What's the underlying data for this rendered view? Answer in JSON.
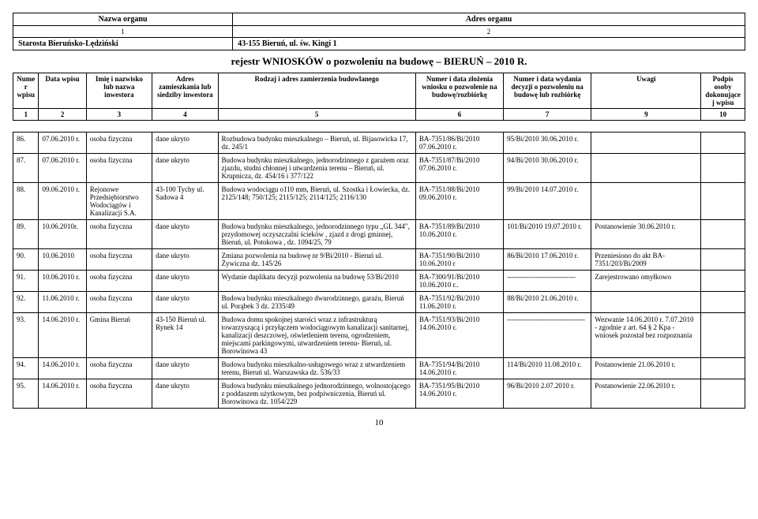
{
  "header": {
    "col1_label": "Nazwa organu",
    "col2_label": "Adres organu",
    "col1_num": "1",
    "col2_num": "2",
    "col1_val": "Starosta Bieruńsko-Lędziński",
    "col2_val": "43-155 Bieruń, ul. św. Kingi 1"
  },
  "register_title": "rejestr WNIOSKÓW o pozwoleniu na budowę – BIERUŃ – 2010 R.",
  "columns": {
    "c1": "Numer wpisu",
    "c2": "Data wpisu",
    "c3": "Imię i nazwisko lub nazwa inwestora",
    "c4": "Adres zamieszkania lub siedziby inwestora",
    "c5": "Rodzaj i adres zamierzenia budowlanego",
    "c6": "Numer i data złożenia wniosku o pozwolenie na budowę/rozbiórkę",
    "c7": "Numer i data wydania decyzji   o pozwoleniu na budowę lub rozbiórkę",
    "c9": "Uwagi",
    "c10": "Podpis osoby dokonującej wpisu"
  },
  "colnums": {
    "n1": "1",
    "n2": "2",
    "n3": "3",
    "n4": "4",
    "n5": "5",
    "n6": "6",
    "n7": "7",
    "n9": "9",
    "n10": "10"
  },
  "rows": [
    {
      "no": "86.",
      "date": "07.06.2010 r.",
      "inv": "osoba fizyczna",
      "addr": "dane ukryto",
      "desc": "Rozbudowa budynku mieszkalnego – Bieruń, ul. Bijasowicka 17, dz. 245/1",
      "app": "BA-7351/86/Bi/2010 07.06.2010 r.",
      "dec": "95/Bi/2010 30.06.2010 r.",
      "rem": "",
      "sig": ""
    },
    {
      "no": "87.",
      "date": "07.06.2010 r.",
      "inv": "osoba fizyczna",
      "addr": "dane ukryto",
      "desc": "Budowa budynku mieszkalnego, jednorodzinnego z garażem oraz zjazdu, studni chłonnej i utwardzenia terenu – Bieruń, ul. Krupnicza, dz. 454/16 i 377/122",
      "app": "BA-7351/87/Bi/2010 07.06.2010 r.",
      "dec": "94/Bi/2010 30.06.2010 r.",
      "rem": "",
      "sig": ""
    },
    {
      "no": "88.",
      "date": "09.06.2010 r.",
      "inv": "Rejonowe Przedsiębiorstwo Wodociągów i Kanalizacji S.A.",
      "addr": "43-100 Tychy ul. Sadowa 4",
      "desc": "Budowa wodociągu o110 mm, Bieruń, ul. Szostka i Łowiecka, dz. 2125/148; 750/125; 2115/125; 2114/125; 2116/130",
      "app": "BA-7351/88/Bi/2010 09.06.2010 r.",
      "dec": "99/Bi/2010 14.07.2010 r.",
      "rem": "",
      "sig": ""
    },
    {
      "no": "89.",
      "date": "10.06.2010r.",
      "inv": "osoba fizyczna",
      "addr": "dane ukryto",
      "desc": "Budowa budynku mieszkalnego, jednorodzinnego typu „GL 344\", przydomowej oczyszczalni ścieków , zjazd z drogi gminnej, Bieruń, ul. Potokowa , dz. 1094/25, 79",
      "app": "BA-7351/89/Bi/2010 10.06.2010 r.",
      "dec": "101/Bi/2010 19.07.2010 r.",
      "rem": "Postanowienie 30.06.2010 r.",
      "sig": ""
    },
    {
      "no": "90.",
      "date": "10.06.2010",
      "inv": "osoba fizyczna",
      "addr": "dane ukryto",
      "desc": "Zmiana pozwolenia na budowę  nr 9/Bi/2010 - Bieruń ul. Żywiczna dz. 145/26",
      "app": "BA-7351/90/Bi/2010 10.06.2010 r",
      "dec": "86/Bi/2010 17.06.2010 r.",
      "rem": "Przeniesiono do akt BA-7351/203/Bi/2009",
      "sig": ""
    },
    {
      "no": "91.",
      "date": "10.06.2010 r.",
      "inv": "osoba fizyczna",
      "addr": "dane ukryto",
      "desc": "Wydanie duplikatu decyzji pozwolenia na budowę 53/Bi/2010",
      "app": "BA-7300/91/Bi/2010 10.06.2010 r..",
      "dec": "-----------------------------",
      "rem": "Zarejestrowano omyłkowo",
      "sig": ""
    },
    {
      "no": "92.",
      "date": "11.06.2010 r.",
      "inv": "osoba fizyczna",
      "addr": "dane ukryto",
      "desc": "Budowa budynku mieszkalnego dwurodzinnego, garażu, Bieruń ul. Porąbek 3 dz. 2335/49",
      "app": "BA-7351/92/Bi/2010 11.06.2010 r.",
      "dec": "88/Bi/2010 21.06.2010 r.",
      "rem": "",
      "sig": ""
    },
    {
      "no": "93.",
      "date": "14.06.2010 r.",
      "inv": "Gmina Bieruń",
      "addr": "43-150 Bieruń ul. Rynek 14",
      "desc": "Budowa domu spokojnej starości wraz z infrastrukturą towarzyszącą i przyłączem wodociągowym kanalizacji sanitarnej, kanalizacji deszczowej, oświetleniem terenu, ogrodzeniem, miejscami parkingowymi, utwardzeniem terenu- Bieruń, ul. Borowinowa 43",
      "app": "BA-7351/93/Bi/2010 14.06.2010 r.",
      "dec": "---------------------------------",
      "rem": "Wezwanie 14.06.2010 r. 7.07.2010  -  zgodnie z art. 64 § 2 Kpa - wniosek pozostał bez rozpoznania",
      "sig": ""
    },
    {
      "no": "94.",
      "date": "14.06.2010 r.",
      "inv": "osoba fizyczna",
      "addr": "dane ukryto",
      "desc": "Budowa budynku mieszkalno-usługowego wraz z utwardzeniem terenu, Bieruń ul. Warszawska dz. 536/33",
      "app": "BA-7351/94/Bi/2010 14.06.2010 r.",
      "dec": "114/Bi/2010 11.08.2010 r.",
      "rem": "Postanowienie 21.06.2010 r.",
      "sig": ""
    },
    {
      "no": "95.",
      "date": "14.06.2010 r.",
      "inv": "osoba fizyczna",
      "addr": "dane ukryto",
      "desc": "Budowa budynku mieszkalnego jednorodzinnego, wolnostojącego z poddaszem użytkowym, bez podpiwniczenia, Bieruń ul. Borowinowa dz. 1054/229",
      "app": "BA-7351/95/Bi/2010 14.06.2010 r.",
      "dec": "96/Bi/2010 2.07.2010 r.",
      "rem": "Postanowienie 22.06.2010 r.",
      "sig": ""
    }
  ],
  "page_number": "10",
  "widths": {
    "c1": "3.5%",
    "c2": "6.5%",
    "c3": "9%",
    "c4": "9%",
    "c5": "27%",
    "c6": "12%",
    "c7": "12%",
    "c9": "15%",
    "c10": "6%"
  }
}
